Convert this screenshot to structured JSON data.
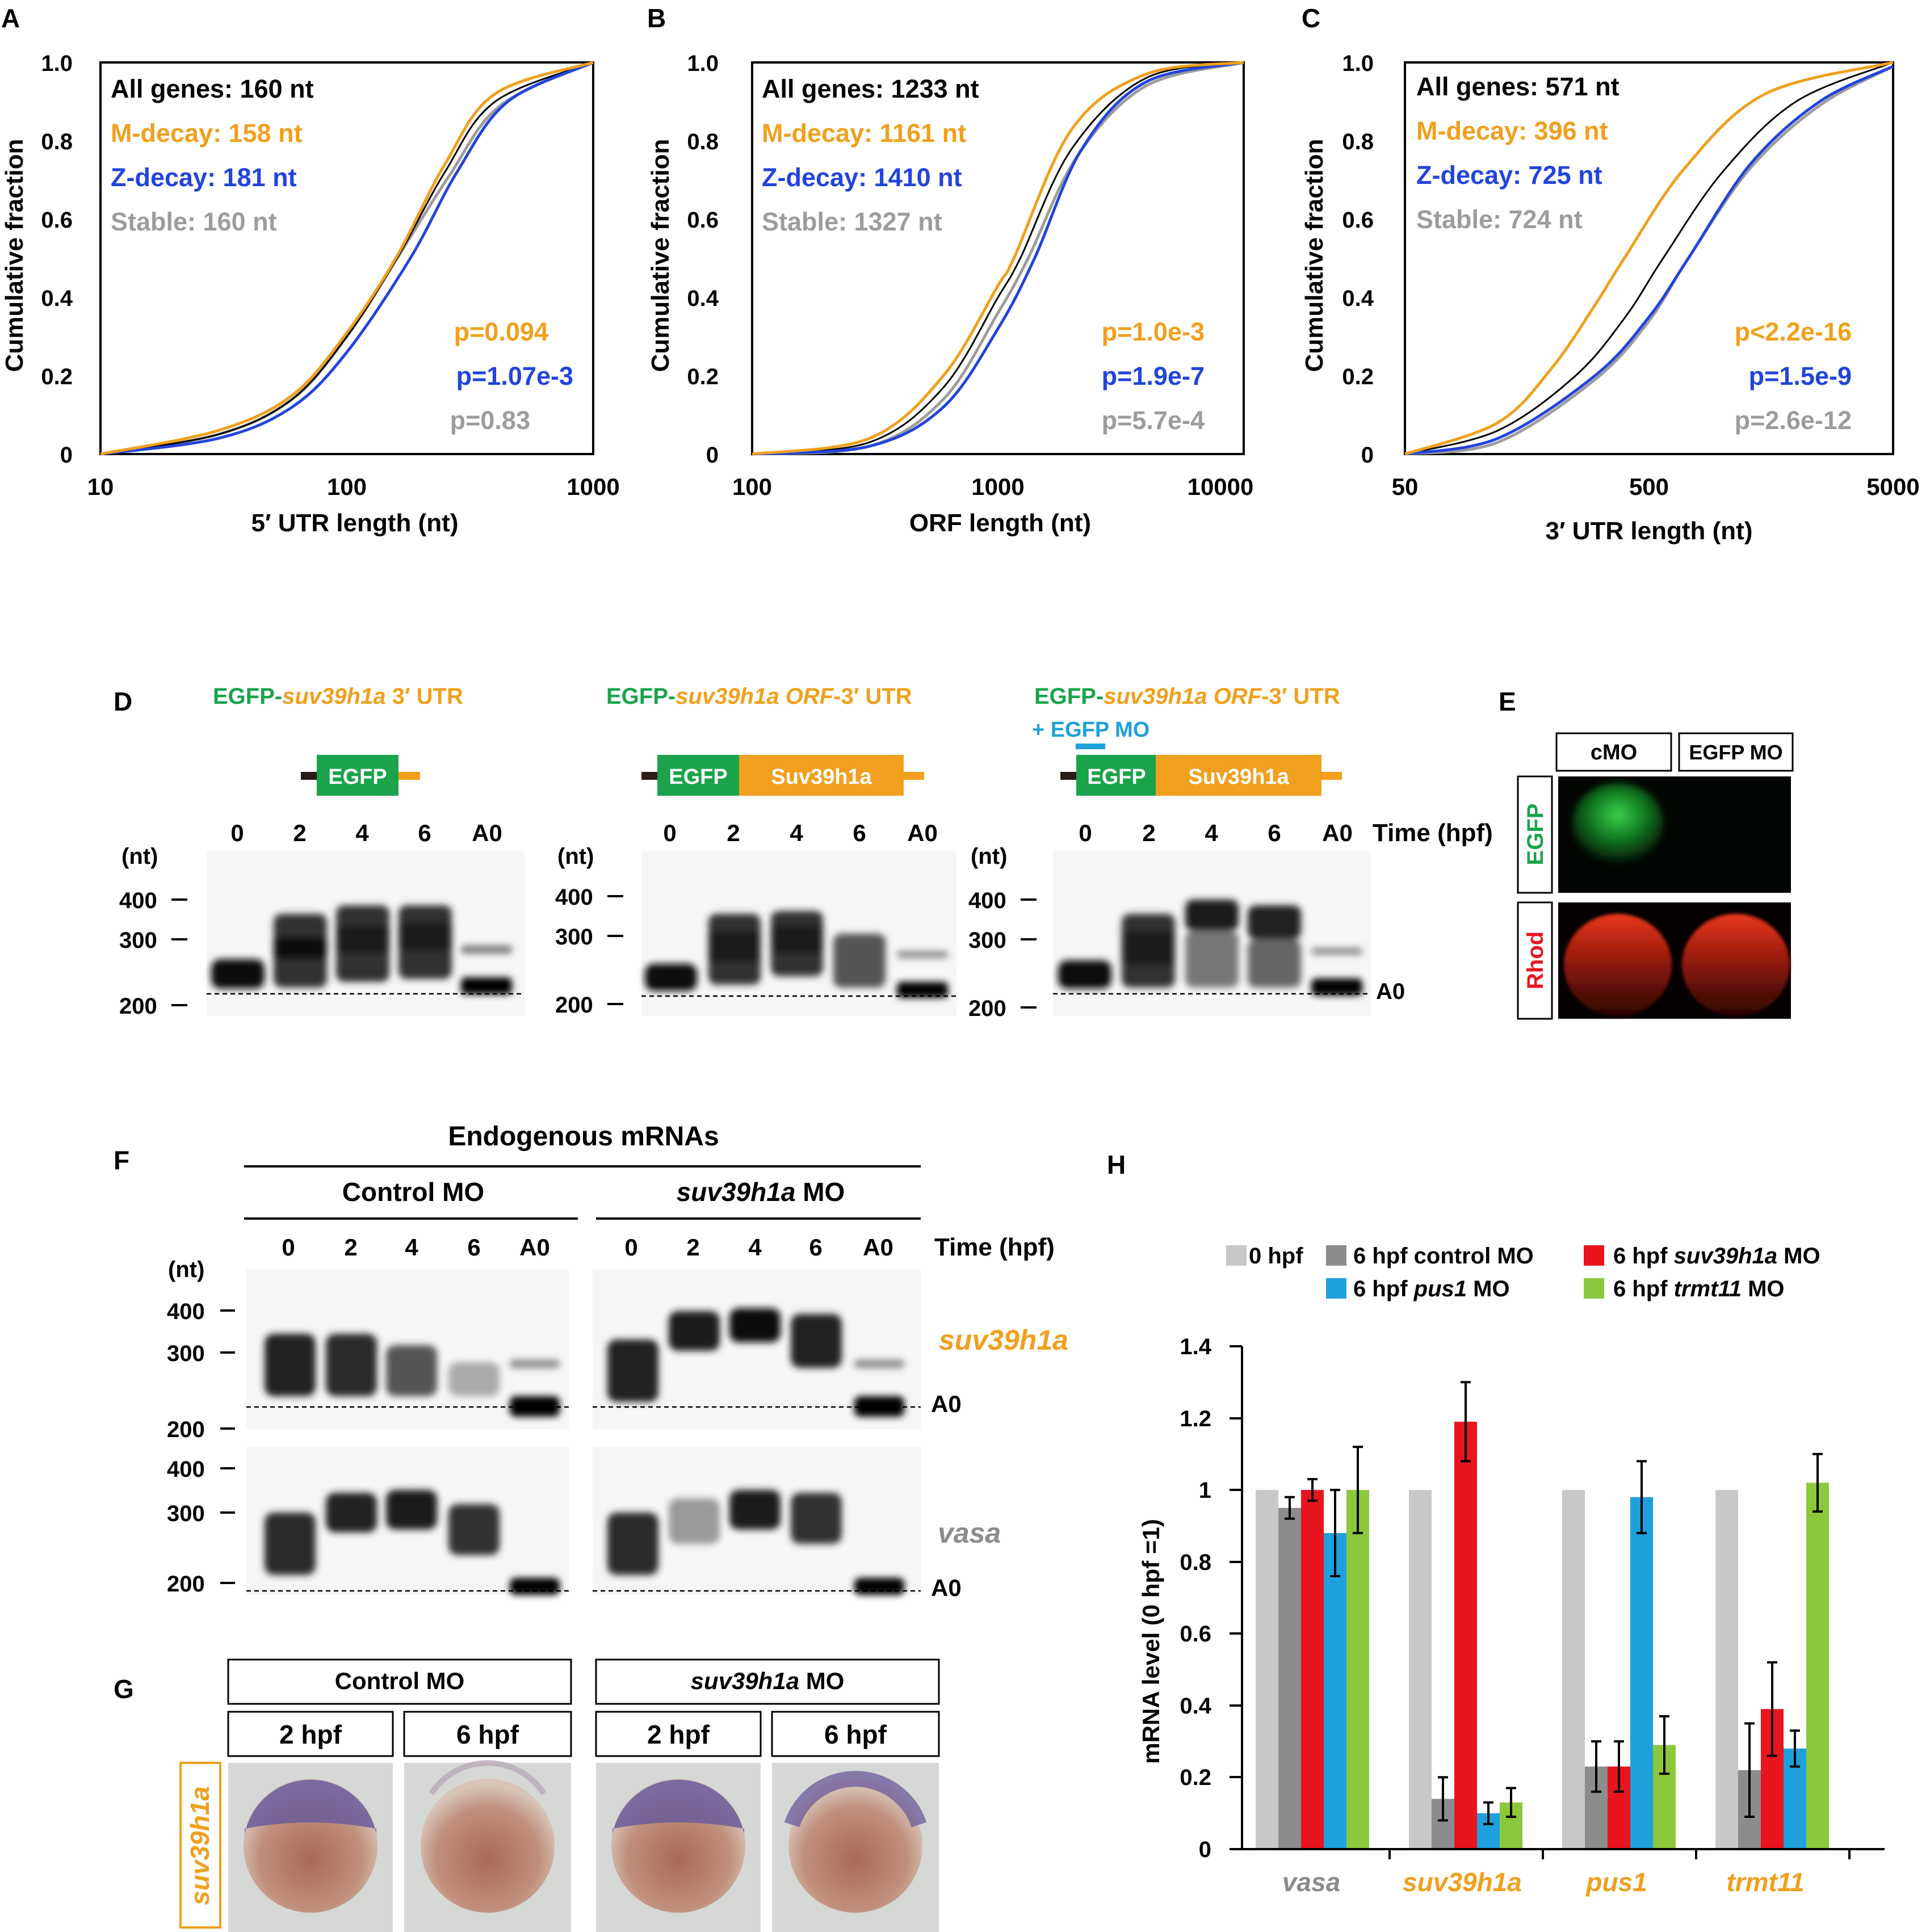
{
  "colors": {
    "black": "#000000",
    "orange": "#f0a01e",
    "blue": "#2244dd",
    "grey": "#9c9c9c",
    "green": "#1aa34a",
    "cyan": "#1ea0dc",
    "red": "#e8141e",
    "lime": "#8cc83c",
    "lightgrey": "#c8c8c8",
    "darkgrey": "#8c8c8c"
  },
  "cdf_ylabel": "Cumulative fraction",
  "cdf_yticks": [
    "0",
    "0.2",
    "0.4",
    "0.6",
    "0.8",
    "1.0"
  ],
  "panels": {
    "A": {
      "letter": "A",
      "xlabel": "5′ UTR length (nt)",
      "xticks": [
        "10",
        "100",
        "1000"
      ],
      "legend": [
        "All genes: 160 nt",
        "M-decay: 158 nt",
        "Z-decay: 181 nt",
        "Stable: 160 nt"
      ],
      "pvals": [
        "p=0.094",
        "p=1.07e-3",
        "p=0.83"
      ]
    },
    "B": {
      "letter": "B",
      "xlabel": "ORF length (nt)",
      "xticks": [
        "100",
        "1000",
        "10000"
      ],
      "legend": [
        "All genes: 1233 nt",
        "M-decay: 1161 nt",
        "Z-decay: 1410 nt",
        "Stable: 1327 nt"
      ],
      "pvals": [
        "p=1.0e-3",
        "p=1.9e-7",
        "p=5.7e-4"
      ]
    },
    "C": {
      "letter": "C",
      "xlabel": "3′ UTR length (nt)",
      "xticks": [
        "50",
        "500",
        "5000"
      ],
      "legend": [
        "All genes: 571 nt",
        "M-decay: 396 nt",
        "Z-decay: 725 nt",
        "Stable: 724 nt"
      ],
      "pvals": [
        "p<2.2e-16",
        "p=1.5e-9",
        "p=2.6e-12"
      ]
    }
  },
  "chart_data": [
    {
      "type": "line",
      "panel": "A",
      "xlabel": "5′ UTR length (nt)",
      "ylabel": "Cumulative fraction",
      "xscale": "log",
      "xlim": [
        10,
        1000
      ],
      "ylim": [
        0,
        1
      ],
      "series": [
        {
          "name": "All genes",
          "median": 160,
          "points": [
            [
              10,
              0
            ],
            [
              30,
              0.05
            ],
            [
              60,
              0.14
            ],
            [
              100,
              0.3
            ],
            [
              160,
              0.5
            ],
            [
              250,
              0.72
            ],
            [
              400,
              0.9
            ],
            [
              1000,
              1
            ]
          ]
        },
        {
          "name": "M-decay",
          "median": 158,
          "points": [
            [
              10,
              0
            ],
            [
              30,
              0.06
            ],
            [
              60,
              0.15
            ],
            [
              100,
              0.31
            ],
            [
              158,
              0.5
            ],
            [
              250,
              0.74
            ],
            [
              400,
              0.92
            ],
            [
              1000,
              1
            ]
          ]
        },
        {
          "name": "Z-decay",
          "median": 181,
          "points": [
            [
              10,
              0
            ],
            [
              30,
              0.04
            ],
            [
              60,
              0.12
            ],
            [
              100,
              0.26
            ],
            [
              181,
              0.5
            ],
            [
              280,
              0.72
            ],
            [
              450,
              0.9
            ],
            [
              1000,
              1
            ]
          ]
        },
        {
          "name": "Stable",
          "median": 160,
          "points": [
            [
              10,
              0
            ],
            [
              30,
              0.05
            ],
            [
              60,
              0.14
            ],
            [
              100,
              0.3
            ],
            [
              160,
              0.5
            ],
            [
              260,
              0.71
            ],
            [
              420,
              0.89
            ],
            [
              1000,
              1
            ]
          ]
        }
      ]
    },
    {
      "type": "line",
      "panel": "B",
      "xlabel": "ORF length (nt)",
      "ylabel": "Cumulative fraction",
      "xscale": "log",
      "xlim": [
        100,
        10000
      ],
      "ylim": [
        0,
        1
      ],
      "series": [
        {
          "name": "All genes",
          "median": 1233,
          "points": [
            [
              100,
              0
            ],
            [
              300,
              0.03
            ],
            [
              600,
              0.17
            ],
            [
              1000,
              0.4
            ],
            [
              1233,
              0.5
            ],
            [
              2000,
              0.78
            ],
            [
              4000,
              0.96
            ],
            [
              10000,
              1
            ]
          ]
        },
        {
          "name": "M-decay",
          "median": 1161,
          "points": [
            [
              100,
              0
            ],
            [
              300,
              0.04
            ],
            [
              600,
              0.2
            ],
            [
              1000,
              0.43
            ],
            [
              1161,
              0.5
            ],
            [
              2000,
              0.83
            ],
            [
              4000,
              0.97
            ],
            [
              10000,
              1
            ]
          ]
        },
        {
          "name": "Z-decay",
          "median": 1410,
          "points": [
            [
              100,
              0
            ],
            [
              300,
              0.02
            ],
            [
              600,
              0.12
            ],
            [
              1000,
              0.32
            ],
            [
              1410,
              0.5
            ],
            [
              2200,
              0.78
            ],
            [
              4000,
              0.95
            ],
            [
              10000,
              1
            ]
          ]
        },
        {
          "name": "Stable",
          "median": 1327,
          "points": [
            [
              100,
              0
            ],
            [
              300,
              0.02
            ],
            [
              600,
              0.14
            ],
            [
              1000,
              0.36
            ],
            [
              1327,
              0.5
            ],
            [
              2100,
              0.76
            ],
            [
              4000,
              0.94
            ],
            [
              10000,
              1
            ]
          ]
        }
      ]
    },
    {
      "type": "line",
      "panel": "C",
      "xlabel": "3′ UTR length (nt)",
      "ylabel": "Cumulative fraction",
      "xscale": "log",
      "xlim": [
        50,
        5000
      ],
      "ylim": [
        0,
        1
      ],
      "series": [
        {
          "name": "All genes",
          "median": 571,
          "points": [
            [
              50,
              0
            ],
            [
              120,
              0.06
            ],
            [
              250,
              0.2
            ],
            [
              400,
              0.35
            ],
            [
              571,
              0.5
            ],
            [
              1000,
              0.72
            ],
            [
              2000,
              0.9
            ],
            [
              5000,
              1
            ]
          ]
        },
        {
          "name": "M-decay",
          "median": 396,
          "points": [
            [
              50,
              0
            ],
            [
              120,
              0.08
            ],
            [
              200,
              0.22
            ],
            [
              300,
              0.38
            ],
            [
              396,
              0.5
            ],
            [
              700,
              0.73
            ],
            [
              1500,
              0.92
            ],
            [
              5000,
              1
            ]
          ]
        },
        {
          "name": "Z-decay",
          "median": 725,
          "points": [
            [
              50,
              0
            ],
            [
              120,
              0.04
            ],
            [
              300,
              0.2
            ],
            [
              500,
              0.35
            ],
            [
              725,
              0.5
            ],
            [
              1300,
              0.74
            ],
            [
              2500,
              0.9
            ],
            [
              5000,
              0.99
            ]
          ]
        },
        {
          "name": "Stable",
          "median": 724,
          "points": [
            [
              50,
              0
            ],
            [
              120,
              0.03
            ],
            [
              300,
              0.19
            ],
            [
              500,
              0.34
            ],
            [
              724,
              0.5
            ],
            [
              1300,
              0.73
            ],
            [
              2500,
              0.89
            ],
            [
              5000,
              0.99
            ]
          ]
        }
      ]
    },
    {
      "type": "bar",
      "panel": "H",
      "ylabel": "mRNA level (0 hpf =1)",
      "ylim": [
        0,
        1.4
      ],
      "yticks": [
        "0",
        "0.2",
        "0.4",
        "0.6",
        "0.8",
        "1",
        "1.2",
        "1.4"
      ],
      "categories": [
        "vasa",
        "suv39h1a",
        "pus1",
        "trmt11"
      ],
      "series": [
        {
          "name": "0 hpf",
          "values": [
            1,
            1,
            1,
            1
          ],
          "errors": [
            0,
            0,
            0,
            0
          ]
        },
        {
          "name": "6 hpf control MO",
          "values": [
            0.95,
            0.14,
            0.23,
            0.22
          ],
          "errors": [
            0.03,
            0.06,
            0.07,
            0.13
          ]
        },
        {
          "name": "6 hpf suv39h1a MO",
          "values": [
            1.0,
            1.19,
            0.23,
            0.39
          ],
          "errors": [
            0.03,
            0.11,
            0.07,
            0.13
          ]
        },
        {
          "name": "6 hpf pus1 MO",
          "values": [
            0.88,
            0.1,
            0.98,
            0.28
          ],
          "errors": [
            0.12,
            0.03,
            0.1,
            0.05
          ]
        },
        {
          "name": "6 hpf trmt11 MO",
          "values": [
            1.0,
            0.13,
            0.29,
            1.02
          ],
          "errors": [
            0.12,
            0.04,
            0.08,
            0.08
          ]
        }
      ]
    }
  ],
  "panelD": {
    "letter": "D",
    "constructs": [
      {
        "green": "EGFP-",
        "orange": "suv39h1a",
        "rest": " 3′ UTR"
      },
      {
        "green": "EGFP-",
        "orange": "suv39h1a ORF",
        "rest": "-3′ UTR"
      },
      {
        "green": "EGFP-",
        "orange": "suv39h1a ORF",
        "rest": "-3′ UTR",
        "extra": "+ EGFP MO"
      }
    ],
    "box_egfp": "EGFP",
    "box_suv": "Suv39h1a",
    "lanes": [
      "0",
      "2",
      "4",
      "6",
      "A0"
    ],
    "time_label": "Time (hpf)",
    "nt_label": "(nt)",
    "markers": [
      "400",
      "300",
      "200"
    ],
    "a0": "A0"
  },
  "panelE": {
    "letter": "E",
    "cols": [
      "cMO",
      "EGFP MO"
    ],
    "rows": [
      "EGFP",
      "Rhod"
    ]
  },
  "panelF": {
    "letter": "F",
    "title": "Endogenous mRNAs",
    "groups": [
      "Control MO",
      "suv39h1a",
      "MO"
    ],
    "lanes": [
      "0",
      "2",
      "4",
      "6",
      "A0"
    ],
    "time_label": "Time (hpf)",
    "nt_label": "(nt)",
    "markers": [
      "400",
      "300",
      "200"
    ],
    "genes": [
      "suv39h1a",
      "vasa"
    ],
    "a0": "A0"
  },
  "panelG": {
    "letter": "G",
    "groups": [
      "Control MO",
      "suv39h1a",
      "MO"
    ],
    "times": [
      "2 hpf",
      "6 hpf"
    ],
    "gene": "suv39h1a"
  },
  "panelH": {
    "letter": "H",
    "ylabel": "mRNA level (0 hpf =1)",
    "legend": [
      {
        "pre": "0 hpf",
        "it": "",
        "post": ""
      },
      {
        "pre": "6 hpf control MO",
        "it": "",
        "post": ""
      },
      {
        "pre": "6 hpf ",
        "it": "suv39h1a",
        "post": " MO"
      },
      {
        "pre": "6 hpf ",
        "it": "pus1",
        "post": " MO"
      },
      {
        "pre": "6 hpf ",
        "it": "trmt11",
        "post": " MO"
      }
    ],
    "yticks": [
      "0",
      "0.2",
      "0.4",
      "0.6",
      "0.8",
      "1",
      "1.2",
      "1.4"
    ],
    "categories": [
      "vasa",
      "suv39h1a",
      "pus1",
      "trmt11"
    ]
  }
}
